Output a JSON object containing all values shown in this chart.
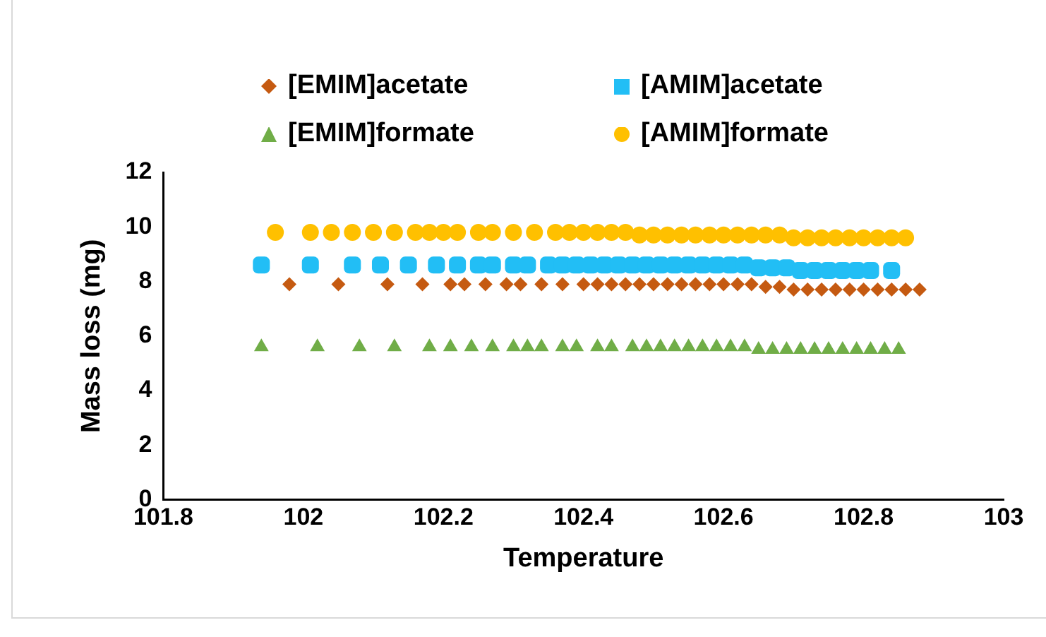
{
  "chart_data": {
    "type": "scatter",
    "xlabel": "Temperature",
    "ylabel": "Mass loss (mg)",
    "xlim": [
      101.8,
      103
    ],
    "xticks": [
      101.8,
      102,
      102.2,
      102.4,
      102.6,
      102.8,
      103
    ],
    "ylim": [
      0,
      12
    ],
    "yticks": [
      0,
      2,
      4,
      6,
      8,
      10,
      12
    ],
    "grid": false,
    "legend": "top",
    "series": [
      {
        "name": "[EMIM]acetate",
        "color": "#c55a11",
        "marker": "diamond",
        "x": [
          101.98,
          102.05,
          102.12,
          102.17,
          102.21,
          102.23,
          102.26,
          102.29,
          102.31,
          102.34,
          102.37,
          102.4,
          102.42,
          102.44,
          102.46,
          102.48,
          102.5,
          102.52,
          102.54,
          102.56,
          102.58,
          102.6,
          102.62,
          102.64,
          102.66,
          102.68,
          102.7,
          102.72,
          102.74,
          102.76,
          102.78,
          102.8,
          102.82,
          102.84,
          102.86,
          102.88
        ],
        "values": [
          7.9,
          7.9,
          7.9,
          7.9,
          7.9,
          7.9,
          7.9,
          7.9,
          7.9,
          7.9,
          7.9,
          7.9,
          7.9,
          7.9,
          7.9,
          7.9,
          7.9,
          7.9,
          7.9,
          7.9,
          7.9,
          7.9,
          7.9,
          7.9,
          7.8,
          7.8,
          7.7,
          7.7,
          7.7,
          7.7,
          7.7,
          7.7,
          7.7,
          7.7,
          7.7,
          7.7
        ]
      },
      {
        "name": "[AMIM]acetate",
        "color": "#22bef5",
        "marker": "square",
        "x": [
          101.94,
          102.01,
          102.07,
          102.11,
          102.15,
          102.19,
          102.22,
          102.25,
          102.27,
          102.3,
          102.32,
          102.35,
          102.37,
          102.39,
          102.41,
          102.43,
          102.45,
          102.47,
          102.49,
          102.51,
          102.53,
          102.55,
          102.57,
          102.59,
          102.61,
          102.63,
          102.65,
          102.67,
          102.69,
          102.71,
          102.73,
          102.75,
          102.77,
          102.79,
          102.81,
          102.84
        ],
        "values": [
          8.6,
          8.6,
          8.6,
          8.6,
          8.6,
          8.6,
          8.6,
          8.6,
          8.6,
          8.6,
          8.6,
          8.6,
          8.6,
          8.6,
          8.6,
          8.6,
          8.6,
          8.6,
          8.6,
          8.6,
          8.6,
          8.6,
          8.6,
          8.6,
          8.6,
          8.6,
          8.5,
          8.5,
          8.5,
          8.4,
          8.4,
          8.4,
          8.4,
          8.4,
          8.4,
          8.4
        ]
      },
      {
        "name": "[EMIM]formate",
        "color": "#70ad47",
        "marker": "triangle",
        "x": [
          101.94,
          102.02,
          102.08,
          102.13,
          102.18,
          102.21,
          102.24,
          102.27,
          102.3,
          102.32,
          102.34,
          102.37,
          102.39,
          102.42,
          102.44,
          102.47,
          102.49,
          102.51,
          102.53,
          102.55,
          102.57,
          102.59,
          102.61,
          102.63,
          102.65,
          102.67,
          102.69,
          102.71,
          102.73,
          102.75,
          102.77,
          102.79,
          102.81,
          102.83,
          102.85
        ],
        "values": [
          5.6,
          5.6,
          5.6,
          5.6,
          5.6,
          5.6,
          5.6,
          5.6,
          5.6,
          5.6,
          5.6,
          5.6,
          5.6,
          5.6,
          5.6,
          5.6,
          5.6,
          5.6,
          5.6,
          5.6,
          5.6,
          5.6,
          5.6,
          5.6,
          5.5,
          5.5,
          5.5,
          5.5,
          5.5,
          5.5,
          5.5,
          5.5,
          5.5,
          5.5,
          5.5
        ]
      },
      {
        "name": "[AMIM]formate",
        "color": "#ffc000",
        "marker": "circle",
        "x": [
          101.96,
          102.01,
          102.04,
          102.07,
          102.1,
          102.13,
          102.16,
          102.18,
          102.2,
          102.22,
          102.25,
          102.27,
          102.3,
          102.33,
          102.36,
          102.38,
          102.4,
          102.42,
          102.44,
          102.46,
          102.48,
          102.5,
          102.52,
          102.54,
          102.56,
          102.58,
          102.6,
          102.62,
          102.64,
          102.66,
          102.68,
          102.7,
          102.72,
          102.74,
          102.76,
          102.78,
          102.8,
          102.82,
          102.84,
          102.86
        ],
        "values": [
          9.8,
          9.8,
          9.8,
          9.8,
          9.8,
          9.8,
          9.8,
          9.8,
          9.8,
          9.8,
          9.8,
          9.8,
          9.8,
          9.8,
          9.8,
          9.8,
          9.8,
          9.8,
          9.8,
          9.8,
          9.7,
          9.7,
          9.7,
          9.7,
          9.7,
          9.7,
          9.7,
          9.7,
          9.7,
          9.7,
          9.7,
          9.6,
          9.6,
          9.6,
          9.6,
          9.6,
          9.6,
          9.6,
          9.6,
          9.6
        ]
      }
    ]
  }
}
